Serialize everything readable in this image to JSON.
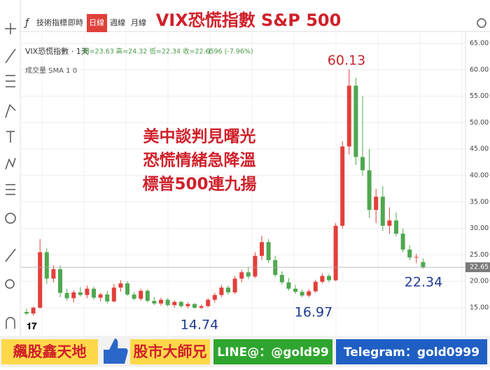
{
  "toolbar": {
    "indicator": "技術指標",
    "items": [
      "即時",
      "日線",
      "週線",
      "月線"
    ]
  },
  "chart_data": {
    "type": "candlestick",
    "title": "VIX恐慌指數 S&P 500",
    "legend_symbol": "VIX恐慌指數 · 1天",
    "legend_ohlc": "開=23.63 高=24.32 低=22.34 收=22.65",
    "legend_change": "-1.96 (-7.96%)",
    "volume_label": "成交量 SMA 1 0",
    "open": [
      14.2,
      13.9,
      15.0,
      25.5,
      20.5,
      22.3,
      17.8,
      16.8,
      17.9,
      17.4,
      18.6,
      16.9,
      17.5,
      16.2,
      18.8,
      19.6,
      17.5,
      16.7,
      18.2,
      16.3,
      15.8,
      16.5,
      15.5,
      16.1,
      15.3,
      15.7,
      15.0,
      15.3,
      16.5,
      17.4,
      18.8,
      17.9,
      20.5,
      21.7,
      20.9,
      24.8,
      27.4,
      24.0,
      21.2,
      19.8,
      18.6,
      18.0,
      17.3,
      18.1,
      19.9,
      21.0,
      20.2,
      30.5,
      45.5,
      57.0,
      43.5,
      41.0,
      33.5,
      36.0,
      30.5,
      31.5,
      29.0,
      26.0,
      24.5,
      23.63
    ],
    "high": [
      14.8,
      15.2,
      28.0,
      26.2,
      23.0,
      23.0,
      18.6,
      18.3,
      18.9,
      19.2,
      19.0,
      17.8,
      18.2,
      19.5,
      20.2,
      20.0,
      18.0,
      18.6,
      18.5,
      17.0,
      16.9,
      16.8,
      16.4,
      16.3,
      16.0,
      15.9,
      15.6,
      16.8,
      17.8,
      19.3,
      19.2,
      21.0,
      22.2,
      22.6,
      25.5,
      28.6,
      28.0,
      24.8,
      21.9,
      20.6,
      19.3,
      18.4,
      18.5,
      20.3,
      21.5,
      21.4,
      31.0,
      46.5,
      60.13,
      58.5,
      55.0,
      45.0,
      37.5,
      38.0,
      34.0,
      33.0,
      30.0,
      26.8,
      25.2,
      24.32
    ],
    "low": [
      13.6,
      13.5,
      14.8,
      19.5,
      19.8,
      17.0,
      16.3,
      16.0,
      17.1,
      16.8,
      16.5,
      16.2,
      15.8,
      16.0,
      18.0,
      17.2,
      16.4,
      16.3,
      16.0,
      15.5,
      15.4,
      15.2,
      15.0,
      15.0,
      14.9,
      14.8,
      14.74,
      15.1,
      16.0,
      17.0,
      17.5,
      17.6,
      19.8,
      20.4,
      20.6,
      24.0,
      23.5,
      20.8,
      19.4,
      18.2,
      17.6,
      17.0,
      16.97,
      17.8,
      19.6,
      19.8,
      20.0,
      30.0,
      44.0,
      42.0,
      40.0,
      32.0,
      31.0,
      29.5,
      29.0,
      28.5,
      25.5,
      24.0,
      23.4,
      22.34
    ],
    "close": [
      13.9,
      15.0,
      25.5,
      20.5,
      22.3,
      17.8,
      16.8,
      17.9,
      17.4,
      18.6,
      16.9,
      17.5,
      16.2,
      18.8,
      19.6,
      17.5,
      16.7,
      18.2,
      16.3,
      15.8,
      16.5,
      15.5,
      16.1,
      15.3,
      15.7,
      15.0,
      15.3,
      16.5,
      17.4,
      18.8,
      17.9,
      20.5,
      21.7,
      20.9,
      24.8,
      27.4,
      24.0,
      21.2,
      19.8,
      18.6,
      18.0,
      17.3,
      18.1,
      19.9,
      21.0,
      20.2,
      30.5,
      45.5,
      57.0,
      43.5,
      41.0,
      33.5,
      36.0,
      30.5,
      31.5,
      29.0,
      26.0,
      24.5,
      24.6,
      22.65
    ],
    "up_color": "#e2403a",
    "down_color": "#4fa84f",
    "ylim": [
      9.7,
      67.25
    ],
    "yticks": [
      {
        "value": 65,
        "label": "65.00"
      },
      {
        "value": 60,
        "label": "60.00"
      },
      {
        "value": 55,
        "label": "55.00"
      },
      {
        "value": 50,
        "label": "50.00"
      },
      {
        "value": 45,
        "label": "45.00"
      },
      {
        "value": 40,
        "label": "40.00"
      },
      {
        "value": 35,
        "label": "35.00"
      },
      {
        "value": 30,
        "label": "30.00"
      },
      {
        "value": 25,
        "label": "25.00"
      },
      {
        "value": 20,
        "label": "20.00"
      },
      {
        "value": 15,
        "label": "15.00"
      }
    ],
    "grid": true,
    "last_price": 22.65,
    "annotations": [
      {
        "text": "60.13",
        "color": "#c8242c"
      },
      {
        "text": "22.34",
        "color": "#1f3a93"
      },
      {
        "text": "14.74",
        "color": "#1f3a93"
      },
      {
        "text": "16.97",
        "color": "#1f3a93"
      }
    ],
    "note": [
      "美中談判見曙光",
      "恐慌情緒急降溫",
      "標普500連九揚"
    ]
  },
  "banner": {
    "items": [
      "飆股鑫天地",
      "股市大師兄",
      "LINE@：@gold99",
      "Telegram：gold0999"
    ]
  }
}
